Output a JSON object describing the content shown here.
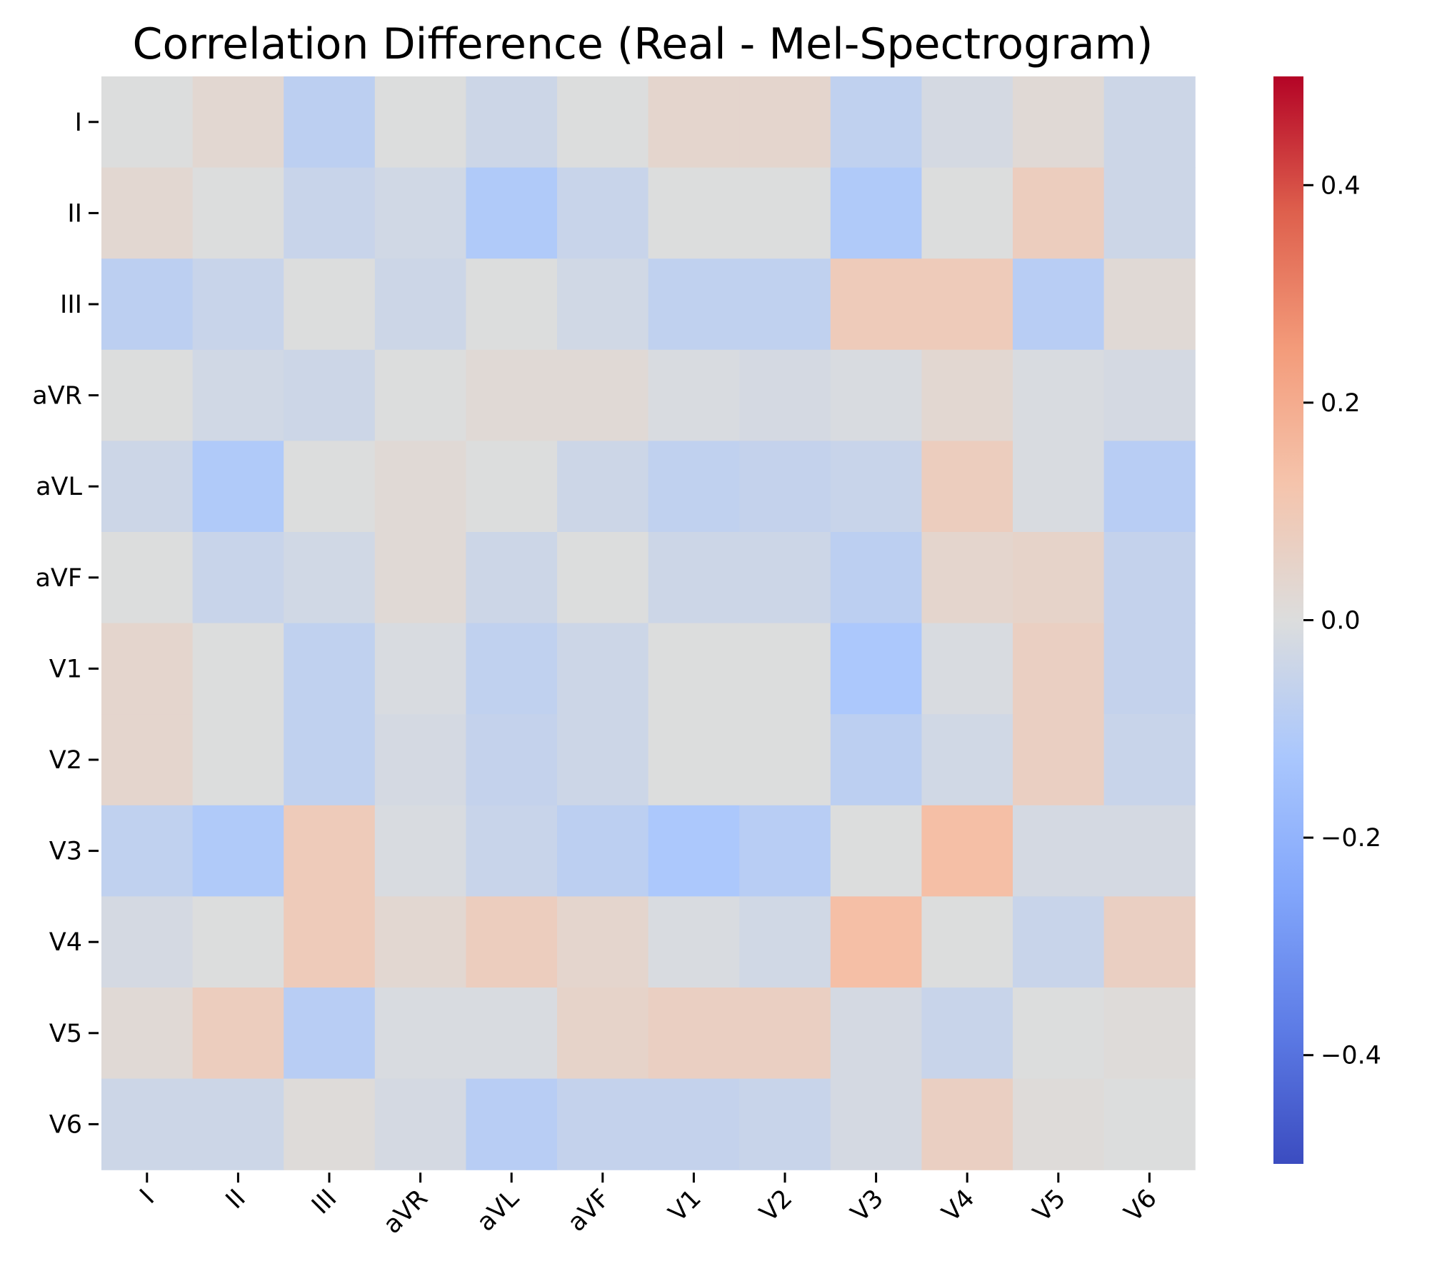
{
  "chart_data": {
    "type": "heatmap",
    "title": "Correlation Difference (Real - Mel-Spectrogram)",
    "row_labels": [
      "I",
      "II",
      "III",
      "aVR",
      "aVL",
      "aVF",
      "V1",
      "V2",
      "V3",
      "V4",
      "V5",
      "V6"
    ],
    "col_labels": [
      "I",
      "II",
      "III",
      "aVR",
      "aVL",
      "aVF",
      "V1",
      "V2",
      "V3",
      "V4",
      "V5",
      "V6"
    ],
    "values": [
      [
        0.0,
        0.03,
        -0.08,
        0.0,
        -0.04,
        0.0,
        0.04,
        0.04,
        -0.07,
        -0.02,
        0.02,
        -0.04
      ],
      [
        0.03,
        0.0,
        -0.05,
        -0.03,
        -0.11,
        -0.05,
        0.0,
        0.0,
        -0.11,
        0.0,
        0.08,
        -0.04
      ],
      [
        -0.08,
        -0.05,
        0.0,
        -0.04,
        0.0,
        -0.03,
        -0.07,
        -0.07,
        0.09,
        0.09,
        -0.09,
        0.02
      ],
      [
        0.0,
        -0.03,
        -0.04,
        0.0,
        0.02,
        0.02,
        -0.01,
        -0.02,
        -0.01,
        0.03,
        -0.01,
        -0.02
      ],
      [
        -0.04,
        -0.11,
        0.0,
        0.02,
        0.0,
        -0.04,
        -0.07,
        -0.06,
        -0.05,
        0.08,
        -0.01,
        -0.09
      ],
      [
        0.0,
        -0.05,
        -0.03,
        0.02,
        -0.04,
        0.0,
        -0.04,
        -0.04,
        -0.08,
        0.04,
        0.05,
        -0.06
      ],
      [
        0.04,
        0.0,
        -0.07,
        -0.01,
        -0.07,
        -0.04,
        0.0,
        0.0,
        -0.12,
        -0.01,
        0.07,
        -0.06
      ],
      [
        0.04,
        0.0,
        -0.07,
        -0.02,
        -0.06,
        -0.04,
        0.0,
        0.0,
        -0.08,
        -0.03,
        0.07,
        -0.05
      ],
      [
        -0.07,
        -0.11,
        0.09,
        -0.01,
        -0.05,
        -0.08,
        -0.12,
        -0.09,
        0.0,
        0.14,
        -0.02,
        -0.02
      ],
      [
        -0.02,
        0.0,
        0.09,
        0.03,
        0.08,
        0.04,
        -0.01,
        -0.03,
        0.14,
        0.0,
        -0.05,
        0.07
      ],
      [
        0.02,
        0.08,
        -0.09,
        -0.01,
        -0.01,
        0.05,
        0.07,
        0.07,
        -0.02,
        -0.05,
        0.0,
        0.01
      ],
      [
        -0.04,
        -0.04,
        0.01,
        -0.02,
        -0.09,
        -0.06,
        -0.06,
        -0.05,
        -0.02,
        0.07,
        0.01,
        0.0
      ]
    ],
    "vmin": -0.5,
    "vmax": 0.5,
    "colormap": "coolwarm",
    "colorbar_ticks": [
      0.4,
      0.2,
      0.0,
      -0.2,
      -0.4
    ],
    "colorbar_tick_labels": [
      "0.4",
      "0.2",
      "0.0",
      "−0.2",
      "−0.4"
    ],
    "xlabel": "",
    "ylabel": ""
  }
}
